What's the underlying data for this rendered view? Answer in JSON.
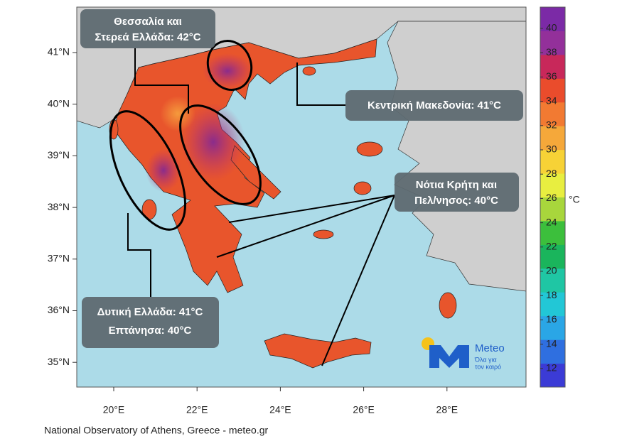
{
  "map": {
    "lat_ticks": [
      {
        "value": 41,
        "label": "41°N"
      },
      {
        "value": 40,
        "label": "40°N"
      },
      {
        "value": 39,
        "label": "39°N"
      },
      {
        "value": 38,
        "label": "38°N"
      },
      {
        "value": 37,
        "label": "37°N"
      },
      {
        "value": 36,
        "label": "36°N"
      },
      {
        "value": 35,
        "label": "35°N"
      }
    ],
    "lon_ticks": [
      {
        "value": 20,
        "label": "20°E"
      },
      {
        "value": 22,
        "label": "22°E"
      },
      {
        "value": 24,
        "label": "24°E"
      },
      {
        "value": 26,
        "label": "26°E"
      },
      {
        "value": 28,
        "label": "28°E"
      }
    ],
    "annotations": [
      {
        "lines": [
          "Θεσσαλία και",
          "Στερεά Ελλάδα: 42°C"
        ]
      },
      {
        "lines": [
          "Κεντρική Μακεδονία: 41°C"
        ]
      },
      {
        "lines": [
          "Νότια Κρήτη και",
          "Πελ/νησος: 40°C"
        ]
      },
      {
        "lines": [
          "Δυτική Ελλάδα: 41°C",
          "Επτάνησα: 40°C"
        ]
      }
    ],
    "colorbar": {
      "unit": "°C",
      "ticks": [
        40,
        38,
        36,
        34,
        32,
        30,
        28,
        26,
        24,
        22,
        20,
        18,
        16,
        14,
        12
      ]
    }
  },
  "logo": {
    "name": "Meteo",
    "tagline": [
      "Όλα για",
      "τον καιρό"
    ]
  },
  "footer": "National Observatory of Athens, Greece - meteo.gr"
}
